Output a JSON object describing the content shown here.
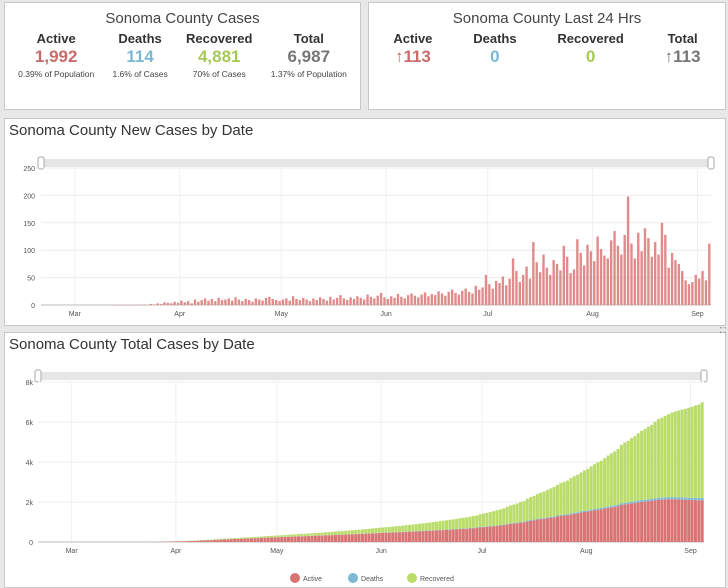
{
  "cases_panel": {
    "title": "Sonoma County Cases",
    "stats": [
      {
        "label": "Active",
        "value": "1,992",
        "sub": "0.39% of Population",
        "color": "#c96b6b"
      },
      {
        "label": "Deaths",
        "value": "114",
        "sub": "1.6% of Cases",
        "color": "#7ab8d6"
      },
      {
        "label": "Recovered",
        "value": "4,881",
        "sub": "70% of Cases",
        "color": "#a6c957"
      },
      {
        "label": "Total",
        "value": "6,987",
        "sub": "1.37% of Population",
        "color": "#777777"
      }
    ]
  },
  "last24_panel": {
    "title": "Sonoma County Last 24 Hrs",
    "stats": [
      {
        "label": "Active",
        "value": "↑113",
        "color": "#c96b6b"
      },
      {
        "label": "Deaths",
        "value": "0",
        "color": "#7ab8d6"
      },
      {
        "label": "Recovered",
        "value": "0",
        "color": "#a6c957"
      },
      {
        "label": "Total",
        "value": "↑113",
        "color": "#777777"
      }
    ]
  },
  "chart_data": [
    {
      "type": "bar",
      "title": "Sonoma County New Cases by Date",
      "x_tick_labels": [
        "Mar",
        "Apr",
        "May",
        "Jun",
        "Jul",
        "Aug",
        "Sep"
      ],
      "y_ticks": [
        0,
        50,
        100,
        150,
        200,
        250
      ],
      "ylim": [
        0,
        250
      ],
      "start_date": "2020-02-20",
      "bar_color": "#e08a8a",
      "values": [
        0,
        0,
        0,
        0,
        0,
        0,
        0,
        0,
        0,
        1,
        0,
        2,
        1,
        3,
        2,
        5,
        4,
        3,
        6,
        4,
        8,
        5,
        7,
        3,
        10,
        6,
        9,
        12,
        8,
        11,
        7,
        13,
        9,
        10,
        12,
        8,
        14,
        10,
        7,
        11,
        9,
        6,
        12,
        10,
        8,
        13,
        15,
        11,
        9,
        7,
        10,
        12,
        8,
        16,
        11,
        9,
        13,
        10,
        7,
        12,
        9,
        14,
        11,
        8,
        15,
        10,
        13,
        18,
        12,
        9,
        14,
        11,
        16,
        13,
        10,
        19,
        15,
        12,
        17,
        22,
        14,
        11,
        16,
        13,
        20,
        15,
        12,
        18,
        21,
        17,
        14,
        19,
        23,
        16,
        20,
        18,
        25,
        21,
        17,
        24,
        28,
        22,
        19,
        26,
        30,
        24,
        21,
        35,
        28,
        32,
        55,
        38,
        30,
        44,
        40,
        52,
        36,
        48,
        85,
        62,
        42,
        55,
        70,
        48,
        115,
        78,
        60,
        92,
        68,
        55,
        82,
        75,
        63,
        108,
        88,
        58,
        65,
        120,
        95,
        72,
        110,
        98,
        80,
        125,
        102,
        90,
        85,
        118,
        135,
        108,
        92,
        128,
        198,
        112,
        85,
        132,
        98,
        140,
        122,
        88,
        115,
        92,
        150,
        128,
        68,
        95,
        82,
        75,
        62,
        45,
        38,
        42,
        55,
        48,
        62,
        45,
        112
      ]
    },
    {
      "type": "area",
      "title": "Sonoma County Total Cases by Date",
      "x_tick_labels": [
        "Mar",
        "Apr",
        "May",
        "Jun",
        "Jul",
        "Aug",
        "Sep"
      ],
      "y_tick_labels": [
        "0",
        "2k",
        "4k",
        "6k",
        "8k"
      ],
      "ylim": [
        0,
        8000
      ],
      "legend_position": "bottom",
      "series": [
        {
          "name": "Active",
          "color": "#d97474"
        },
        {
          "name": "Deaths",
          "color": "#7ab8d6"
        },
        {
          "name": "Recovered",
          "color": "#b9dc6b"
        }
      ],
      "final_values": {
        "Active": 1992,
        "Deaths": 114,
        "Recovered": 4881,
        "Total": 6987
      }
    }
  ]
}
